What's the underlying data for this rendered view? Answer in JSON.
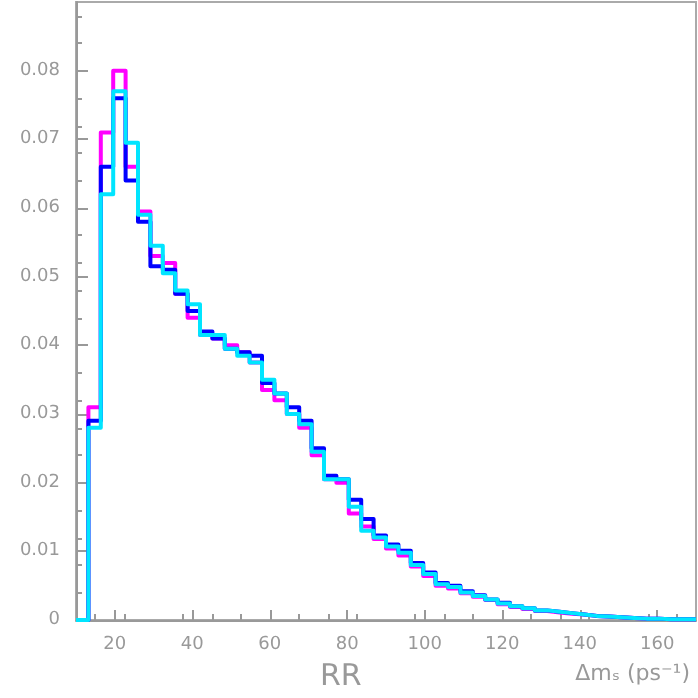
{
  "chart_data": {
    "type": "histogram",
    "xlabel": "Δmₛ (ps⁻¹)",
    "annotations": [
      "RR"
    ],
    "bins": [
      10,
      13.2,
      16.4,
      19.6,
      22.8,
      26,
      29.2,
      32.4,
      35.6,
      38.8,
      42,
      45.2,
      48.4,
      51.6,
      54.8,
      58,
      61.2,
      64.4,
      67.6,
      70.8,
      74,
      77.2,
      80.4,
      83.6,
      86.8,
      90,
      93.2,
      96.4,
      99.6,
      102.8,
      106,
      109.2,
      112.4,
      115.6,
      118.8,
      122,
      125.2,
      128.4,
      131.6,
      134.8,
      138,
      141.2,
      144.4,
      147.6,
      150.8,
      154,
      157.2,
      160.4,
      163.6,
      166.8,
      170
    ],
    "series": [
      {
        "color": "#ff00ff",
        "values": [
          0,
          0.031,
          0.071,
          0.08,
          0.066,
          0.0595,
          0.053,
          0.052,
          0.0475,
          0.044,
          0.0415,
          0.041,
          0.04,
          0.039,
          0.0375,
          0.0335,
          0.032,
          0.03,
          0.028,
          0.024,
          0.0205,
          0.02,
          0.0155,
          0.0136,
          0.0118,
          0.0104,
          0.0094,
          0.0078,
          0.0064,
          0.005,
          0.0046,
          0.0039,
          0.0034,
          0.0029,
          0.0023,
          0.0019,
          0.0016,
          0.0013,
          0.0011,
          0.0009,
          0.0008,
          0.0006,
          0.0005,
          0.0004,
          0.0003,
          0.0002,
          0.0002,
          0.0001,
          0.0001,
          0.0001
        ]
      },
      {
        "color": "#0000ff",
        "values": [
          0,
          0.029,
          0.066,
          0.076,
          0.064,
          0.058,
          0.0515,
          0.051,
          0.0475,
          0.045,
          0.042,
          0.041,
          0.0395,
          0.039,
          0.0385,
          0.0345,
          0.033,
          0.031,
          0.029,
          0.025,
          0.021,
          0.0205,
          0.0175,
          0.0147,
          0.0123,
          0.011,
          0.0101,
          0.0083,
          0.0069,
          0.0054,
          0.005,
          0.0042,
          0.0036,
          0.003,
          0.0025,
          0.002,
          0.0017,
          0.0014,
          0.0012,
          0.001,
          0.0008,
          0.0006,
          0.0005,
          0.0004,
          0.0003,
          0.0002,
          0.0002,
          0.0001,
          0.0001,
          0.0001
        ]
      },
      {
        "color": "#00e5ff",
        "values": [
          0,
          0.028,
          0.062,
          0.077,
          0.0695,
          0.059,
          0.0545,
          0.0505,
          0.048,
          0.046,
          0.0415,
          0.0415,
          0.0395,
          0.0385,
          0.0375,
          0.035,
          0.033,
          0.03,
          0.0285,
          0.0245,
          0.0205,
          0.0205,
          0.0165,
          0.013,
          0.012,
          0.0107,
          0.0098,
          0.008,
          0.0067,
          0.0052,
          0.0048,
          0.004,
          0.0035,
          0.003,
          0.0024,
          0.002,
          0.0017,
          0.0014,
          0.0012,
          0.001,
          0.0008,
          0.0006,
          0.0005,
          0.0004,
          0.0003,
          0.0002,
          0.0002,
          0.0001,
          0.0001,
          0.0001
        ]
      }
    ],
    "xlim": [
      10,
      170
    ],
    "xticks": [
      20,
      40,
      60,
      80,
      100,
      120,
      140,
      160
    ],
    "ylim": [
      0,
      0.09
    ],
    "yticks": [
      0,
      0.01,
      0.02,
      0.03,
      0.04,
      0.05,
      0.06,
      0.07,
      0.08
    ],
    "grid": false,
    "legend": false
  }
}
